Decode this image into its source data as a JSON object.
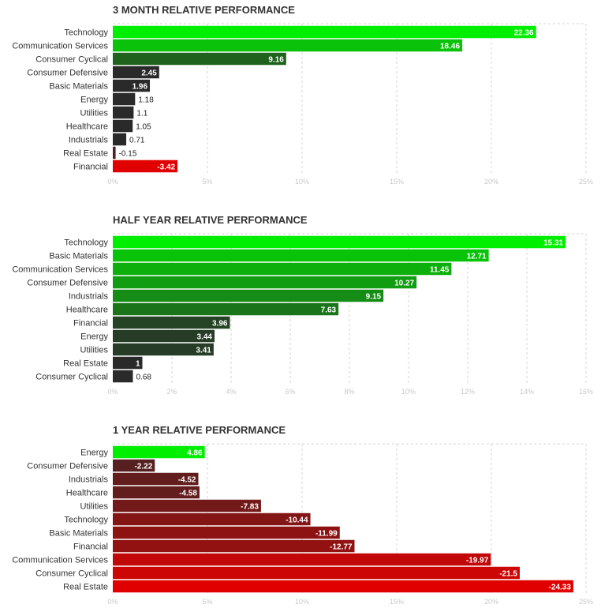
{
  "chart_data": [
    {
      "type": "bar",
      "orientation": "horizontal",
      "title": "3 MONTH RELATIVE PERFORMANCE",
      "categories": [
        "Technology",
        "Communication Services",
        "Consumer Cyclical",
        "Consumer Defensive",
        "Basic Materials",
        "Energy",
        "Utilities",
        "Healthcare",
        "Industrials",
        "Real Estate",
        "Financial"
      ],
      "values": [
        22.36,
        18.46,
        9.16,
        2.45,
        1.96,
        1.18,
        1.1,
        1.05,
        0.71,
        -0.15,
        -3.42
      ],
      "value_labels": [
        "22.36",
        "18.46",
        "9.16",
        "2.45",
        "1.96",
        "1.18",
        "1.1",
        "1.05",
        "0.71",
        "-0.15",
        "-3.42"
      ],
      "xlim": [
        0,
        25
      ],
      "xticks": [
        0,
        5,
        10,
        15,
        20,
        25
      ],
      "xtick_labels": [
        "0%",
        "5%",
        "10%",
        "15%",
        "20%",
        "25%"
      ],
      "grid": true
    },
    {
      "type": "bar",
      "orientation": "horizontal",
      "title": "HALF YEAR RELATIVE PERFORMANCE",
      "categories": [
        "Technology",
        "Basic Materials",
        "Communication Services",
        "Consumer Defensive",
        "Industrials",
        "Healthcare",
        "Financial",
        "Energy",
        "Utilities",
        "Real Estate",
        "Consumer Cyclical"
      ],
      "values": [
        15.31,
        12.71,
        11.45,
        10.27,
        9.15,
        7.63,
        3.96,
        3.44,
        3.41,
        1,
        0.68
      ],
      "value_labels": [
        "15.31",
        "12.71",
        "11.45",
        "10.27",
        "9.15",
        "7.63",
        "3.96",
        "3.44",
        "3.41",
        "1",
        "0.68"
      ],
      "xlim": [
        0,
        16
      ],
      "xticks": [
        0,
        2,
        4,
        6,
        8,
        10,
        12,
        14,
        16
      ],
      "xtick_labels": [
        "0%",
        "2%",
        "4%",
        "6%",
        "8%",
        "10%",
        "12%",
        "14%",
        "16%"
      ],
      "grid": true
    },
    {
      "type": "bar",
      "orientation": "horizontal",
      "title": "1 YEAR RELATIVE PERFORMANCE",
      "categories": [
        "Energy",
        "Consumer Defensive",
        "Industrials",
        "Healthcare",
        "Utilities",
        "Technology",
        "Basic Materials",
        "Financial",
        "Communication Services",
        "Consumer Cyclical",
        "Real Estate"
      ],
      "values": [
        4.86,
        -2.22,
        -4.52,
        -4.58,
        -7.83,
        -10.44,
        -11.99,
        -12.77,
        -19.97,
        -21.5,
        -24.33
      ],
      "value_labels": [
        "4.86",
        "-2.22",
        "-4.52",
        "-4.58",
        "-7.83",
        "-10.44",
        "-11.99",
        "-12.77",
        "-19.97",
        "-21.5",
        "-24.33"
      ],
      "xlim": [
        0,
        25
      ],
      "xticks": [
        0,
        5,
        10,
        15,
        20,
        25
      ],
      "xtick_labels": [
        "0%",
        "5%",
        "10%",
        "15%",
        "20%",
        "25%"
      ],
      "grid": true
    }
  ]
}
